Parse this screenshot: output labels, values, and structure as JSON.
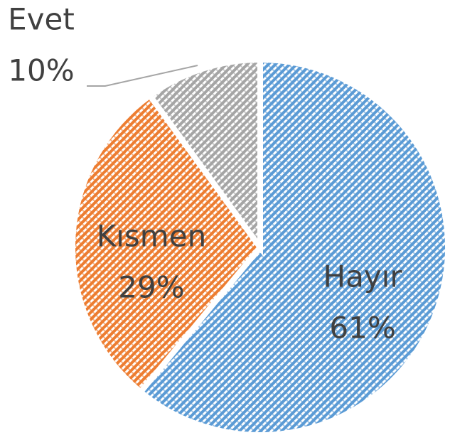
{
  "chart_data": {
    "type": "pie",
    "categories": [
      "Hayır",
      "Kısmen",
      "Evet"
    ],
    "values": [
      61,
      29,
      10
    ],
    "value_labels": [
      "61%",
      "29%",
      "10%"
    ],
    "colors": [
      "#5b9bd5",
      "#ed7d31",
      "#a5a5a5"
    ]
  }
}
